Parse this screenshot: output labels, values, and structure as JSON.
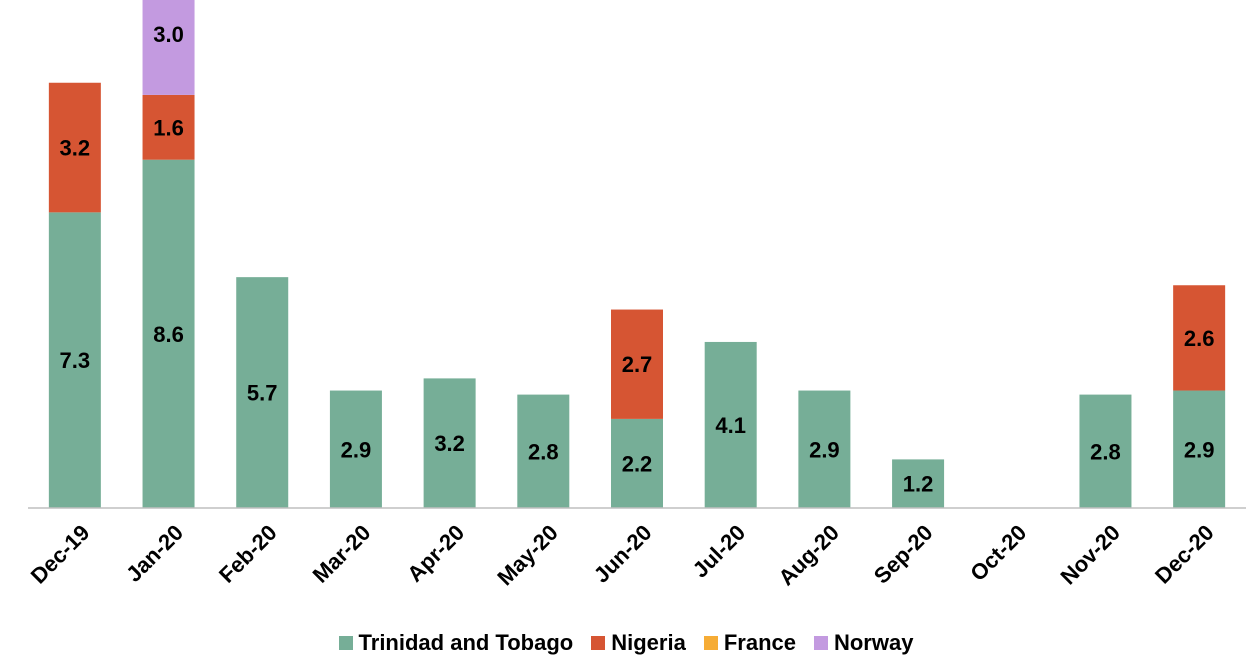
{
  "chart_data": {
    "type": "bar",
    "stacked": true,
    "categories": [
      "Dec-19",
      "Jan-20",
      "Feb-20",
      "Mar-20",
      "Apr-20",
      "May-20",
      "Jun-20",
      "Jul-20",
      "Aug-20",
      "Sep-20",
      "Oct-20",
      "Nov-20",
      "Dec-20"
    ],
    "series": [
      {
        "name": "Trinidad and Tobago",
        "color": "#76ae97",
        "values": [
          7.3,
          8.6,
          5.7,
          2.9,
          3.2,
          2.8,
          2.2,
          4.1,
          2.9,
          1.2,
          0,
          2.8,
          2.9
        ],
        "labels": [
          "7.3",
          "8.6",
          "5.7",
          "2.9",
          "3.2",
          "2.8",
          "2.2",
          "4.1",
          "2.9",
          "1.2",
          "",
          "2.8",
          "2.9"
        ]
      },
      {
        "name": "Nigeria",
        "color": "#d65533",
        "values": [
          3.2,
          1.6,
          0,
          0,
          0,
          0,
          2.7,
          0,
          0,
          0,
          0,
          0,
          2.6
        ],
        "labels": [
          "3.2",
          "1.6",
          "",
          "",
          "",
          "",
          "2.7",
          "",
          "",
          "",
          "",
          "",
          "2.6"
        ]
      },
      {
        "name": "France",
        "color": "#f6ac35",
        "values": [
          0,
          0,
          0,
          0,
          0,
          0,
          0,
          0,
          0,
          0,
          0,
          0,
          0
        ],
        "labels": [
          "",
          "",
          "",
          "",
          "",
          "",
          "",
          "",
          "",
          "",
          "",
          "",
          ""
        ]
      },
      {
        "name": "Norway",
        "color": "#c39ae0",
        "values": [
          0,
          3.0,
          0,
          0,
          0,
          0,
          0,
          0,
          0,
          0,
          0,
          0,
          0
        ],
        "labels": [
          "",
          "3.0",
          "",
          "",
          "",
          "",
          "",
          "",
          "",
          "",
          "",
          "",
          ""
        ]
      }
    ],
    "title": "",
    "xlabel": "",
    "ylabel": "",
    "ylim": [
      0,
      13.5
    ],
    "grid": false,
    "legend_position": "bottom"
  }
}
